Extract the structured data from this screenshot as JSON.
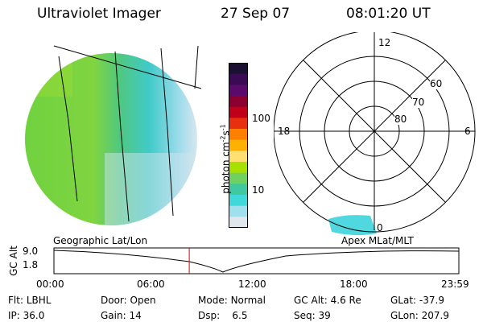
{
  "header": {
    "title": "Ultraviolet Imager",
    "date": "27 Sep 07",
    "time": "08:01:20 UT"
  },
  "colorbar": {
    "label": "photon cm^-2 s^-1",
    "label_main": "photon cm",
    "label_exp1": "-2",
    "label_s": "s",
    "label_exp2": "-1",
    "tick_high": "100",
    "tick_low": "10",
    "colors": [
      "#1a1030",
      "#3a0a55",
      "#5a0a6a",
      "#8a0030",
      "#c0001a",
      "#e83010",
      "#ff8000",
      "#ffb000",
      "#ffe070",
      "#a8e000",
      "#70d060",
      "#40c8a0",
      "#40d8d8",
      "#a0e0ec",
      "#e0e8ee"
    ]
  },
  "polar": {
    "labels": {
      "top": "12",
      "left": "18",
      "right": "6",
      "bottom": "0"
    },
    "rings": [
      "60",
      "70",
      "80"
    ]
  },
  "timeline": {
    "left_caption": "Geographic Lat/Lon",
    "right_caption": "Apex MLat/MLT",
    "ylabel": "GC Alt",
    "ymax": "9.0",
    "ymin": "1.8",
    "xticks": [
      "00:00",
      "06:00",
      "12:00",
      "18:00",
      "23:59"
    ],
    "current_time_hours": 8.02
  },
  "info": {
    "flt_label": "Flt:",
    "flt_value": "LBHL",
    "ip_label": "IP:",
    "ip_value": "36.0",
    "door_label": "Door:",
    "door_value": "Open",
    "gain_label": "Gain:",
    "gain_value": "14",
    "mode_label": "Mode:",
    "mode_value": "Normal",
    "dsp_label": "Dsp:",
    "dsp_value": "6.5",
    "gcalt_label": "GC Alt:",
    "gcalt_value": "4.6 Re",
    "seq_label": "Seq:",
    "seq_value": "39",
    "glat_label": "GLat:",
    "glat_value": "-37.9",
    "glon_label": "GLon:",
    "glon_value": "207.9"
  }
}
